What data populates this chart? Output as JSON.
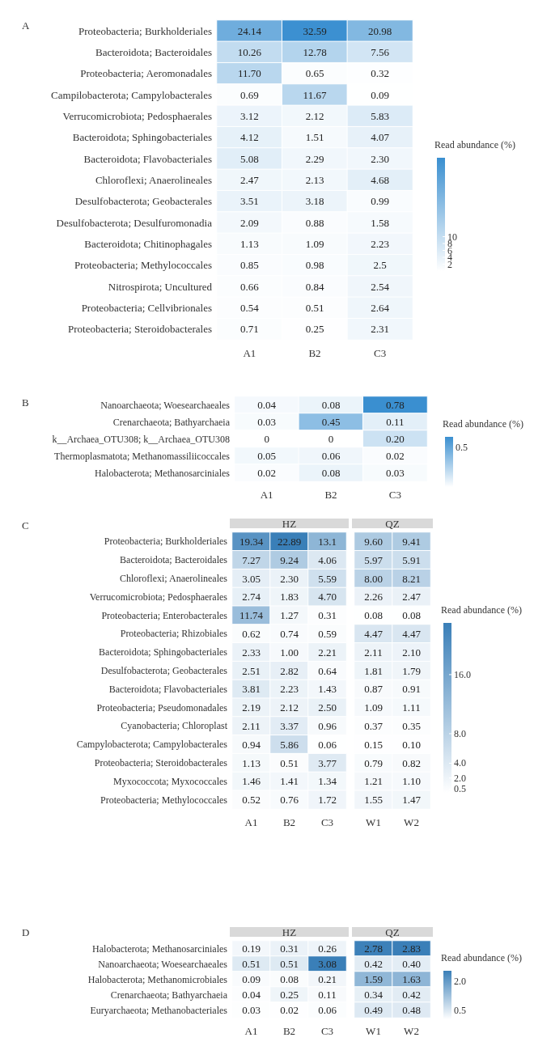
{
  "chart_data": [
    {
      "type": "heatmap",
      "title": "A",
      "categories": [
        "A1",
        "B2",
        "C3"
      ],
      "y_categories": [
        "Proteobacteria; Burkholderiales",
        "Bacteroidota; Bacteroidales",
        "Proteobacteria; Aeromonadales",
        "Campilobacterota; Campylobacterales",
        "Verrucomicrobiota; Pedosphaerales",
        "Bacteroidota; Sphingobacteriales",
        "Bacteroidota; Flavobacteriales",
        "Chloroflexi; Anaerolineales",
        "Desulfobacterota; Geobacterales",
        "Desulfobacterota; Desulfuromonadia",
        "Bacteroidota; Chitinophagales",
        "Proteobacteria; Methylococcales",
        "Nitrospirota; Uncultured",
        "Proteobacteria; Cellvibrionales",
        "Proteobacteria; Steroidobacterales"
      ],
      "cells": [
        [
          24.14,
          32.59,
          20.98
        ],
        [
          10.26,
          12.78,
          7.56
        ],
        [
          11.7,
          0.65,
          0.32
        ],
        [
          0.69,
          11.67,
          0.09
        ],
        [
          3.12,
          2.12,
          5.83
        ],
        [
          4.12,
          1.51,
          4.07
        ],
        [
          5.08,
          2.29,
          2.3
        ],
        [
          2.47,
          2.13,
          4.68
        ],
        [
          3.51,
          3.18,
          0.99
        ],
        [
          2.09,
          0.88,
          1.58
        ],
        [
          1.13,
          1.09,
          2.23
        ],
        [
          0.85,
          0.98,
          2.5
        ],
        [
          0.66,
          0.84,
          2.54
        ],
        [
          0.54,
          0.51,
          2.64
        ],
        [
          0.71,
          0.25,
          2.31
        ]
      ],
      "cell_labels": [
        [
          "24.14",
          "32.59",
          "20.98"
        ],
        [
          "10.26",
          "12.78",
          "7.56"
        ],
        [
          "11.70",
          "0.65",
          "0.32"
        ],
        [
          "0.69",
          "11.67",
          "0.09"
        ],
        [
          "3.12",
          "2.12",
          "5.83"
        ],
        [
          "4.12",
          "1.51",
          "4.07"
        ],
        [
          "5.08",
          "2.29",
          "2.30"
        ],
        [
          "2.47",
          "2.13",
          "4.68"
        ],
        [
          "3.51",
          "3.18",
          "0.99"
        ],
        [
          "2.09",
          "0.88",
          "1.58"
        ],
        [
          "1.13",
          "1.09",
          "2.23"
        ],
        [
          "0.85",
          "0.98",
          "2.5"
        ],
        [
          "0.66",
          "0.84",
          "2.54"
        ],
        [
          "0.54",
          "0.51",
          "2.64"
        ],
        [
          "0.71",
          "0.25",
          "2.31"
        ]
      ],
      "color": "#3a8fd0",
      "clabel": "Read abundance (%)",
      "clim": [
        0,
        33
      ],
      "cticks": [
        2,
        4,
        6,
        8,
        10
      ]
    },
    {
      "type": "heatmap",
      "title": "B",
      "categories": [
        "A1",
        "B2",
        "C3"
      ],
      "y_categories": [
        "Nanoarchaeota; Woesearchaeales",
        "Crenarchaeota; Bathyarchaeia",
        "k__Archaea_OTU308; k__Archaea_OTU308",
        "Thermoplasmatota; Methanomassiliicoccales",
        "Halobacterota; Methanosarciniales"
      ],
      "cells": [
        [
          0.04,
          0.08,
          0.78
        ],
        [
          0.03,
          0.45,
          0.11
        ],
        [
          0,
          0,
          0.2
        ],
        [
          0.05,
          0.06,
          0.02
        ],
        [
          0.02,
          0.08,
          0.03
        ]
      ],
      "cell_labels": [
        [
          "0.04",
          "0.08",
          "0.78"
        ],
        [
          "0.03",
          "0.45",
          "0.11"
        ],
        [
          "0",
          "0",
          "0.20"
        ],
        [
          "0.05",
          "0.06",
          "0.02"
        ],
        [
          "0.02",
          "0.08",
          "0.03"
        ]
      ],
      "color": "#3a8fd0",
      "clabel": "Read abundance (%)",
      "annotations": [
        "0.5"
      ]
    },
    {
      "type": "heatmap",
      "title": "C",
      "subtitle": "HZ",
      "categories": [
        "A1",
        "B2",
        "C3"
      ],
      "y_categories": [
        "Proteobacteria; Burkholderiales",
        "Bacteroidota; Bacteroidales",
        "Chloroflexi; Anaerolineales",
        "Verrucomicrobiota; Pedosphaerales",
        "Proteobacteria; Enterobacterales",
        "Proteobacteria; Rhizobiales",
        "Bacteroidota; Sphingobacteriales",
        "Desulfobacterota; Geobacterales",
        "Bacteroidota; Flavobacteriales",
        "Proteobacteria; Pseudomonadales",
        "Cyanobacteria; Chloroplast",
        "Campylobacterota; Campylobacterales",
        "Proteobacteria; Steroidobacterales",
        "Myxococcota; Myxococcales",
        "Proteobacteria; Methylococcales"
      ],
      "cells": [
        [
          19.34,
          22.89,
          13.1
        ],
        [
          7.27,
          9.24,
          4.06
        ],
        [
          3.05,
          2.3,
          5.59
        ],
        [
          2.74,
          1.83,
          4.7
        ],
        [
          11.74,
          1.27,
          0.31
        ],
        [
          0.62,
          0.74,
          0.59
        ],
        [
          2.33,
          1.0,
          2.21
        ],
        [
          2.51,
          2.82,
          0.64
        ],
        [
          3.81,
          2.23,
          1.43
        ],
        [
          2.19,
          2.12,
          2.5
        ],
        [
          2.11,
          3.37,
          0.96
        ],
        [
          0.94,
          5.86,
          0.06
        ],
        [
          1.13,
          0.51,
          3.77
        ],
        [
          1.46,
          1.41,
          1.34
        ],
        [
          0.52,
          0.76,
          1.72
        ]
      ],
      "cell_labels": [
        [
          "19.34",
          "22.89",
          "13.1"
        ],
        [
          "7.27",
          "9.24",
          "4.06"
        ],
        [
          "3.05",
          "2.30",
          "5.59"
        ],
        [
          "2.74",
          "1.83",
          "4.70"
        ],
        [
          "11.74",
          "1.27",
          "0.31"
        ],
        [
          "0.62",
          "0.74",
          "0.59"
        ],
        [
          "2.33",
          "1.00",
          "2.21"
        ],
        [
          "2.51",
          "2.82",
          "0.64"
        ],
        [
          "3.81",
          "2.23",
          "1.43"
        ],
        [
          "2.19",
          "2.12",
          "2.50"
        ],
        [
          "2.11",
          "3.37",
          "0.96"
        ],
        [
          "0.94",
          "5.86",
          "0.06"
        ],
        [
          "1.13",
          "0.51",
          "3.77"
        ],
        [
          "1.46",
          "1.41",
          "1.34"
        ],
        [
          "0.52",
          "0.76",
          "1.72"
        ]
      ],
      "color": "#3a7fb8"
    },
    {
      "type": "heatmap",
      "subtitle": "QZ",
      "categories": [
        "W1",
        "W2"
      ],
      "tick_labels": "x",
      "y_categories": [
        null,
        null,
        null,
        null,
        null,
        null,
        null,
        null,
        null,
        null,
        null,
        null,
        null,
        null,
        null
      ],
      "cells": [
        [
          9.6,
          9.41
        ],
        [
          5.97,
          5.91
        ],
        [
          8.0,
          8.21
        ],
        [
          2.26,
          2.47
        ],
        [
          0.08,
          0.08
        ],
        [
          4.47,
          4.47
        ],
        [
          2.11,
          2.1
        ],
        [
          1.81,
          1.79
        ],
        [
          0.87,
          0.91
        ],
        [
          1.09,
          1.11
        ],
        [
          0.37,
          0.35
        ],
        [
          0.15,
          0.1
        ],
        [
          0.79,
          0.82
        ],
        [
          1.21,
          1.1
        ],
        [
          1.55,
          1.47
        ]
      ],
      "cell_labels": [
        [
          "9.60",
          "9.41"
        ],
        [
          "5.97",
          "5.91"
        ],
        [
          "8.00",
          "8.21"
        ],
        [
          "2.26",
          "2.47"
        ],
        [
          "0.08",
          "0.08"
        ],
        [
          "4.47",
          "4.47"
        ],
        [
          "2.11",
          "2.10"
        ],
        [
          "1.81",
          "1.79"
        ],
        [
          "0.87",
          "0.91"
        ],
        [
          "1.09",
          "1.11"
        ],
        [
          "0.37",
          "0.35"
        ],
        [
          "0.15",
          "0.10"
        ],
        [
          "0.79",
          "0.82"
        ],
        [
          "1.21",
          "1.10"
        ],
        [
          "1.55",
          "1.47"
        ]
      ],
      "color": "#3a7fb8",
      "clabel": "Read abundance (%)",
      "clim": [
        0,
        23
      ],
      "cticks": [
        {
          "value": 0.5,
          "label": "0.5"
        },
        {
          "value": 2,
          "label": "2.0"
        },
        {
          "value": 4,
          "label": "4.0"
        },
        {
          "value": 8,
          "label": "8.0"
        },
        {
          "value": 16,
          "label": "16.0"
        }
      ]
    },
    {
      "type": "heatmap",
      "title": "D",
      "subtitle": "HZ",
      "categories": [
        "A1",
        "B2",
        "C3"
      ],
      "y_categories": [
        "Halobacterota; Methanosarciniales",
        "Nanoarchaeota; Woesearchaeales",
        "Halobacterota; Methanomicrobiales",
        "Crenarchaeota; Bathyarchaeia",
        "Euryarchaeota; Methanobacteriales"
      ],
      "cells": [
        [
          0.19,
          0.31,
          0.26
        ],
        [
          0.51,
          0.51,
          3.08
        ],
        [
          0.09,
          0.08,
          0.21
        ],
        [
          0.04,
          0.25,
          0.11
        ],
        [
          0.03,
          0.02,
          0.06
        ]
      ],
      "cell_labels": [
        [
          "0.19",
          "0.31",
          "0.26"
        ],
        [
          "0.51",
          "0.51",
          "3.08"
        ],
        [
          "0.09",
          "0.08",
          "0.21"
        ],
        [
          "0.04",
          "0.25",
          "0.11"
        ],
        [
          "0.03",
          "0.02",
          "0.06"
        ]
      ],
      "color": "#3a7fb8"
    },
    {
      "type": "heatmap",
      "subtitle": "QZ",
      "categories": [
        "W1",
        "W2"
      ],
      "tick_labels": "x",
      "y_categories": [
        null,
        null,
        null,
        null,
        null
      ],
      "cells": [
        [
          2.78,
          2.83
        ],
        [
          0.42,
          0.4
        ],
        [
          1.59,
          1.63
        ],
        [
          0.34,
          0.42
        ],
        [
          0.49,
          0.48
        ]
      ],
      "cell_labels": [
        [
          "2.78",
          "2.83"
        ],
        [
          "0.42",
          "0.40"
        ],
        [
          "1.59",
          "1.63"
        ],
        [
          "0.34",
          "0.42"
        ],
        [
          "0.49",
          "0.48"
        ]
      ],
      "color": "#3a7fb8",
      "clabel": "Read abundance (%)",
      "annotations": [
        "2.0",
        "0.5"
      ]
    }
  ]
}
